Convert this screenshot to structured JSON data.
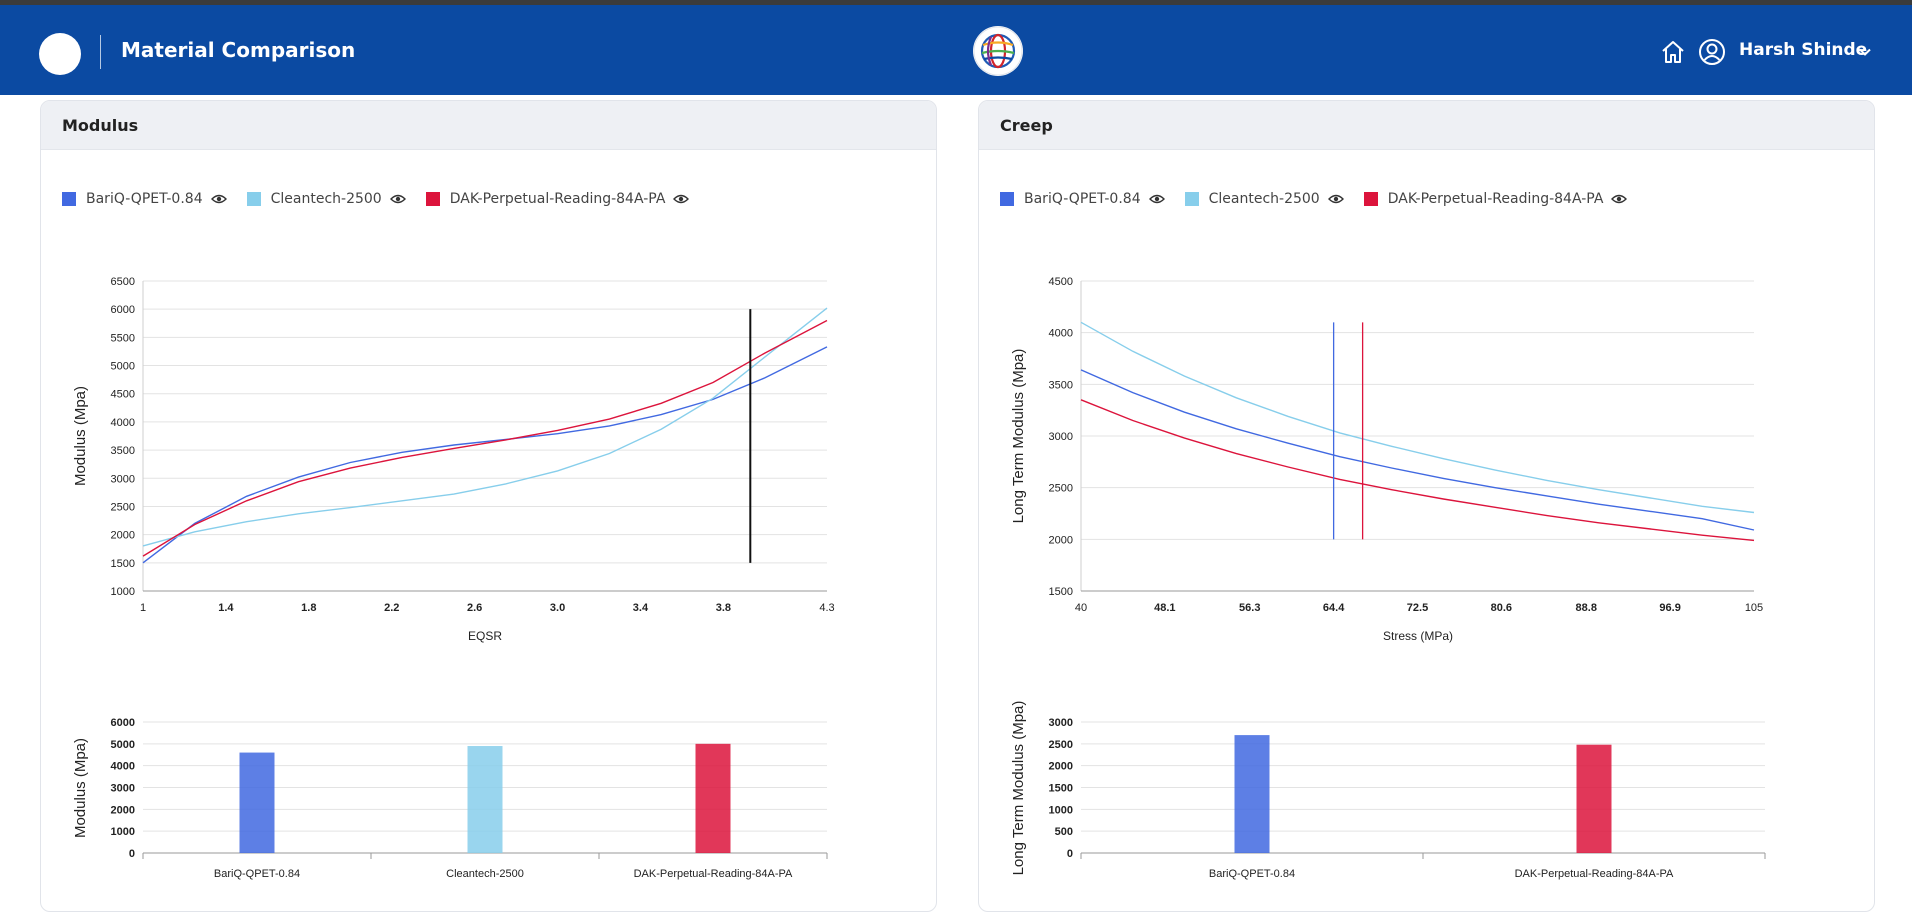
{
  "header": {
    "title": "Material Comparison",
    "user_name": "Harsh Shinde"
  },
  "colors": {
    "header_bg": "#0b4aa2",
    "bariq": "#4169e1",
    "cleantech": "#87ceeb",
    "dak": "#dc143c"
  },
  "legend_items": [
    "BariQ-QPET-0.84",
    "Cleantech-2500",
    "DAK-Perpetual-Reading-84A-PA"
  ],
  "modulus_card": {
    "title": "Modulus"
  },
  "creep_card": {
    "title": "Creep"
  },
  "chart_data": [
    {
      "id": "modulus-line",
      "type": "line",
      "title": "",
      "xlabel": "EQSR",
      "ylabel": "Modulus (Mpa)",
      "xlim": [
        1,
        4.3
      ],
      "ylim": [
        1000,
        6500
      ],
      "xticks": [
        "1",
        "1.4",
        "1.8",
        "2.2",
        "2.6",
        "3.0",
        "3.4",
        "3.8",
        "4.3"
      ],
      "xtick_values": [
        1,
        1.4,
        1.8,
        2.2,
        2.6,
        3.0,
        3.4,
        3.8,
        4.3
      ],
      "yticks": [
        1000,
        1500,
        2000,
        2500,
        3000,
        3500,
        4000,
        4500,
        5000,
        5500,
        6000,
        6500
      ],
      "marker_x": 3.93,
      "marker_range": [
        1500,
        6000
      ],
      "series": [
        {
          "name": "BariQ-QPET-0.84",
          "color": "#4169e1",
          "x": [
            1,
            1.25,
            1.5,
            1.75,
            2.0,
            2.25,
            2.5,
            2.75,
            3.0,
            3.25,
            3.5,
            3.75,
            4.0,
            4.3
          ],
          "y": [
            1500,
            2200,
            2680,
            3020,
            3280,
            3460,
            3590,
            3690,
            3790,
            3930,
            4130,
            4400,
            4780,
            5330
          ]
        },
        {
          "name": "Cleantech-2500",
          "color": "#87ceeb",
          "x": [
            1,
            1.25,
            1.5,
            1.75,
            2.0,
            2.25,
            2.5,
            2.75,
            3.0,
            3.25,
            3.5,
            3.75,
            4.0,
            4.3
          ],
          "y": [
            1800,
            2050,
            2230,
            2370,
            2480,
            2600,
            2720,
            2900,
            3130,
            3440,
            3870,
            4420,
            5150,
            6020
          ]
        },
        {
          "name": "DAK-Perpetual-Reading-84A-PA",
          "color": "#dc143c",
          "x": [
            1,
            1.25,
            1.5,
            1.75,
            2.0,
            2.25,
            2.5,
            2.75,
            3.0,
            3.25,
            3.5,
            3.75,
            4.0,
            4.3
          ],
          "y": [
            1620,
            2180,
            2600,
            2940,
            3180,
            3370,
            3530,
            3680,
            3850,
            4050,
            4330,
            4700,
            5220,
            5800
          ]
        }
      ]
    },
    {
      "id": "modulus-bar",
      "type": "bar",
      "ylabel": "Modulus (Mpa)",
      "ylim": [
        0,
        6000
      ],
      "yticks": [
        0,
        1000,
        2000,
        3000,
        4000,
        5000,
        6000
      ],
      "categories": [
        "BariQ-QPET-0.84",
        "Cleantech-2500",
        "DAK-Perpetual-Reading-84A-PA"
      ],
      "values": [
        4600,
        4900,
        5000
      ],
      "colors": [
        "#4169e1",
        "#87ceeb",
        "#dc143c"
      ]
    },
    {
      "id": "creep-line",
      "type": "line",
      "xlabel": "Stress (MPa)",
      "ylabel": "Long Term Modulus (Mpa)",
      "xlim": [
        40,
        105
      ],
      "ylim": [
        1500,
        4500
      ],
      "xticks": [
        "40",
        "48.1",
        "56.3",
        "64.4",
        "72.5",
        "80.6",
        "88.8",
        "96.9",
        "105"
      ],
      "xtick_values": [
        40,
        48.1,
        56.3,
        64.4,
        72.5,
        80.6,
        88.8,
        96.9,
        105
      ],
      "yticks": [
        1500,
        2000,
        2500,
        3000,
        3500,
        4000,
        4500
      ],
      "markers": [
        {
          "x": 64.4,
          "range": [
            2000,
            4100
          ],
          "color": "#4169e1"
        },
        {
          "x": 67.2,
          "range": [
            2000,
            4100
          ],
          "color": "#dc143c"
        }
      ],
      "series": [
        {
          "name": "BariQ-QPET-0.84",
          "color": "#4169e1",
          "x": [
            40,
            45,
            50,
            55,
            60,
            65,
            70,
            75,
            80,
            85,
            90,
            95,
            100,
            105
          ],
          "y": [
            3640,
            3420,
            3230,
            3070,
            2930,
            2800,
            2690,
            2590,
            2500,
            2420,
            2340,
            2270,
            2200,
            2090
          ]
        },
        {
          "name": "Cleantech-2500",
          "color": "#87ceeb",
          "x": [
            40,
            45,
            50,
            55,
            60,
            65,
            70,
            75,
            80,
            85,
            90,
            95,
            100,
            105
          ],
          "y": [
            4100,
            3820,
            3580,
            3370,
            3190,
            3030,
            2900,
            2780,
            2670,
            2570,
            2480,
            2400,
            2320,
            2260
          ]
        },
        {
          "name": "DAK-Perpetual-Reading-84A-PA",
          "color": "#dc143c",
          "x": [
            40,
            45,
            50,
            55,
            60,
            65,
            70,
            75,
            80,
            85,
            90,
            95,
            100,
            105
          ],
          "y": [
            3350,
            3150,
            2980,
            2830,
            2700,
            2580,
            2480,
            2390,
            2310,
            2230,
            2160,
            2100,
            2040,
            1990
          ]
        }
      ]
    },
    {
      "id": "creep-bar",
      "type": "bar",
      "ylabel": "Long Term Modulus (Mpa)",
      "ylim": [
        0,
        3000
      ],
      "yticks": [
        0,
        500,
        1000,
        1500,
        2000,
        2500,
        3000
      ],
      "categories": [
        "BariQ-QPET-0.84",
        "DAK-Perpetual-Reading-84A-PA"
      ],
      "values": [
        2700,
        2480
      ],
      "colors": [
        "#4169e1",
        "#dc143c"
      ]
    }
  ]
}
